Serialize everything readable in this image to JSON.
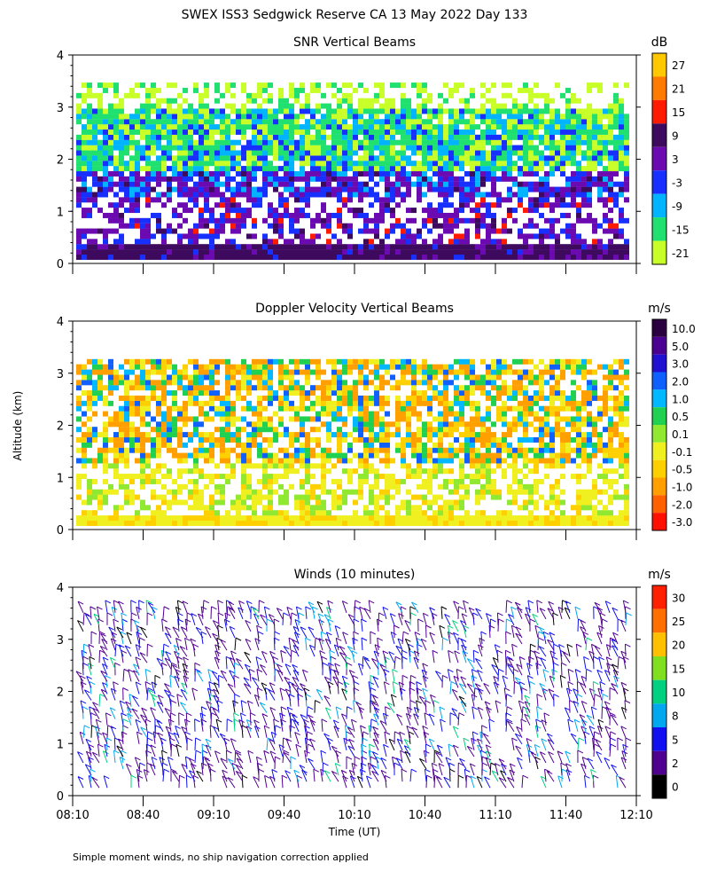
{
  "figure": {
    "title": "SWEX ISS3 Sedgwick Reserve CA  13 May 2022 Day 133",
    "ylabel": "Altitude (km)",
    "xlabel": "Time (UT)",
    "footnote": "Simple moment winds, no ship navigation correction applied"
  },
  "chart_data": [
    {
      "type": "heatmap",
      "title": "SNR Vertical Beams",
      "units": "dB",
      "xlim": [
        "08:10",
        "12:10"
      ],
      "x_ticks": [
        "08:10",
        "08:40",
        "09:10",
        "09:40",
        "10:10",
        "10:40",
        "11:10",
        "11:40",
        "12:10"
      ],
      "ylim": [
        0,
        4
      ],
      "y_ticks": [
        0,
        1,
        2,
        3,
        4
      ],
      "colorbar": {
        "labels": [
          "27",
          "21",
          "15",
          "9",
          "3",
          "-3",
          "-9",
          "-15",
          "-21"
        ],
        "colors": [
          "#ffc800",
          "#ff7a00",
          "#ff1a00",
          "#3d0a5e",
          "#6a0ab0",
          "#1830ff",
          "#00b4ff",
          "#20e070",
          "#c8ff28"
        ]
      },
      "value_bands": [
        {
          "alt_range": [
            0.1,
            0.4
          ],
          "snr_db": [
            3,
            9
          ],
          "note": "purple near surface"
        },
        {
          "alt_range": [
            0.4,
            1.3
          ],
          "snr_db": [
            -3,
            9
          ],
          "note": "patchy purple/blue"
        },
        {
          "alt_range": [
            1.3,
            1.8
          ],
          "snr_db": [
            -9,
            9
          ]
        },
        {
          "alt_range": [
            1.8,
            3.0
          ],
          "snr_db": [
            -21,
            -3
          ],
          "note": "green/cyan layer"
        },
        {
          "alt_range": [
            3.0,
            3.4
          ],
          "snr_db": [
            -21,
            -15
          ]
        }
      ]
    },
    {
      "type": "heatmap",
      "title": "Doppler Velocity Vertical Beams",
      "units": "m/s",
      "xlim": [
        "08:10",
        "12:10"
      ],
      "x_ticks": [
        "08:10",
        "08:40",
        "09:10",
        "09:40",
        "10:10",
        "10:40",
        "11:10",
        "11:40",
        "12:10"
      ],
      "ylim": [
        0,
        4
      ],
      "y_ticks": [
        0,
        1,
        2,
        3,
        4
      ],
      "colorbar": {
        "labels": [
          "10.0",
          "5.0",
          "3.0",
          "2.0",
          "1.0",
          "0.5",
          "0.1",
          "-0.1",
          "-0.5",
          "-1.0",
          "-2.0",
          "-3.0"
        ],
        "colors": [
          "#2a0040",
          "#4a0090",
          "#2010d0",
          "#1060ff",
          "#00b8ff",
          "#20d050",
          "#90e830",
          "#f0f020",
          "#ffd000",
          "#ffa000",
          "#ff6000",
          "#ff1000"
        ]
      },
      "value_bands": [
        {
          "alt_range": [
            0.1,
            0.3
          ],
          "velocity_ms": [
            -0.5,
            -0.1
          ],
          "note": "yellow near surface"
        },
        {
          "alt_range": [
            0.3,
            1.3
          ],
          "velocity_ms": [
            -0.5,
            0.1
          ]
        },
        {
          "alt_range": [
            1.3,
            3.3
          ],
          "velocity_ms": [
            -3.0,
            2.0
          ],
          "note": "mixed orange/green/blue"
        }
      ]
    },
    {
      "type": "wind_barbs",
      "title": "Winds (10 minutes)",
      "units": "m/s",
      "xlim": [
        "08:10",
        "12:10"
      ],
      "x_ticks": [
        "08:10",
        "08:40",
        "09:10",
        "09:40",
        "10:10",
        "10:40",
        "11:10",
        "11:40",
        "12:10"
      ],
      "ylim": [
        0,
        4
      ],
      "y_ticks": [
        0,
        1,
        2,
        3,
        4
      ],
      "colorbar": {
        "labels": [
          "30",
          "25",
          "20",
          "15",
          "10",
          "8",
          "5",
          "2",
          "0"
        ],
        "colors": [
          "#ff2000",
          "#ff7000",
          "#ffc000",
          "#80e020",
          "#00d080",
          "#00a8f0",
          "#1010f0",
          "#500090",
          "#000000"
        ]
      },
      "typical_speed_ms": [
        2,
        8
      ],
      "note": "predominantly dark blue/purple barbs, occasional cyan/green aloft"
    }
  ]
}
